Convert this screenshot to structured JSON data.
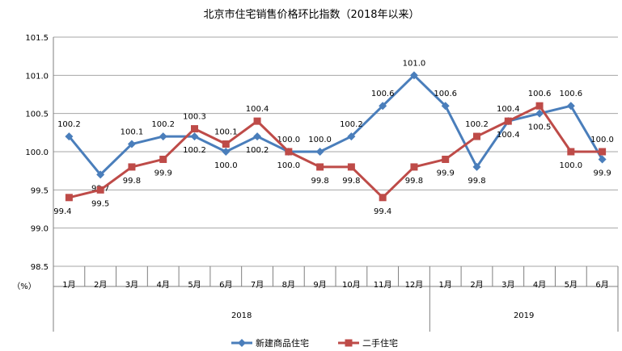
{
  "chart_data": {
    "type": "line",
    "title": "北京市住宅销售价格环比指数（2018年以来）",
    "ylabel": "（%）",
    "xlabel": "",
    "ylim": [
      98.5,
      101.5
    ],
    "yticks": [
      "98.5",
      "99.0",
      "99.5",
      "100.0",
      "100.5",
      "101.0",
      "101.5"
    ],
    "grid": true,
    "legend": "bottom",
    "categories": [
      "1月",
      "2月",
      "3月",
      "4月",
      "5月",
      "6月",
      "7月",
      "8月",
      "9月",
      "10月",
      "11月",
      "12月",
      "1月",
      "2月",
      "3月",
      "4月",
      "5月",
      "6月"
    ],
    "groups": [
      {
        "label": "2018",
        "count": 12
      },
      {
        "label": "2019",
        "count": 6
      }
    ],
    "series": [
      {
        "name": "新建商品住宅",
        "color": "#4a7ebb",
        "marker": "diamond",
        "values": [
          100.2,
          99.7,
          100.1,
          100.2,
          100.2,
          100.0,
          100.2,
          100.0,
          100.0,
          100.2,
          100.6,
          101.0,
          100.6,
          99.8,
          100.4,
          100.5,
          100.6,
          99.9
        ],
        "labels": [
          "100.2",
          "99.7",
          "100.1",
          "100.2",
          "100.2",
          "100.0",
          "100.2",
          "100.0",
          "100.0",
          "100.2",
          "100.6",
          "101.0",
          "100.6",
          "99.8",
          "100.4",
          "100.5",
          "100.6",
          "99.9"
        ]
      },
      {
        "name": "二手住宅",
        "color": "#be4b48",
        "marker": "square",
        "values": [
          99.4,
          99.5,
          99.8,
          99.9,
          100.3,
          100.1,
          100.4,
          100.0,
          99.8,
          99.8,
          99.4,
          99.8,
          99.9,
          100.2,
          100.4,
          100.6,
          100.0,
          100.0
        ],
        "labels": [
          "99.4",
          "99.5",
          "99.8",
          "99.9",
          "100.3",
          "100.1",
          "100.4",
          "100.0",
          "99.8",
          "99.8",
          "99.4",
          "99.8",
          "99.9",
          "100.2",
          "100.4",
          "100.6",
          "100.0",
          "100.0"
        ]
      }
    ]
  }
}
